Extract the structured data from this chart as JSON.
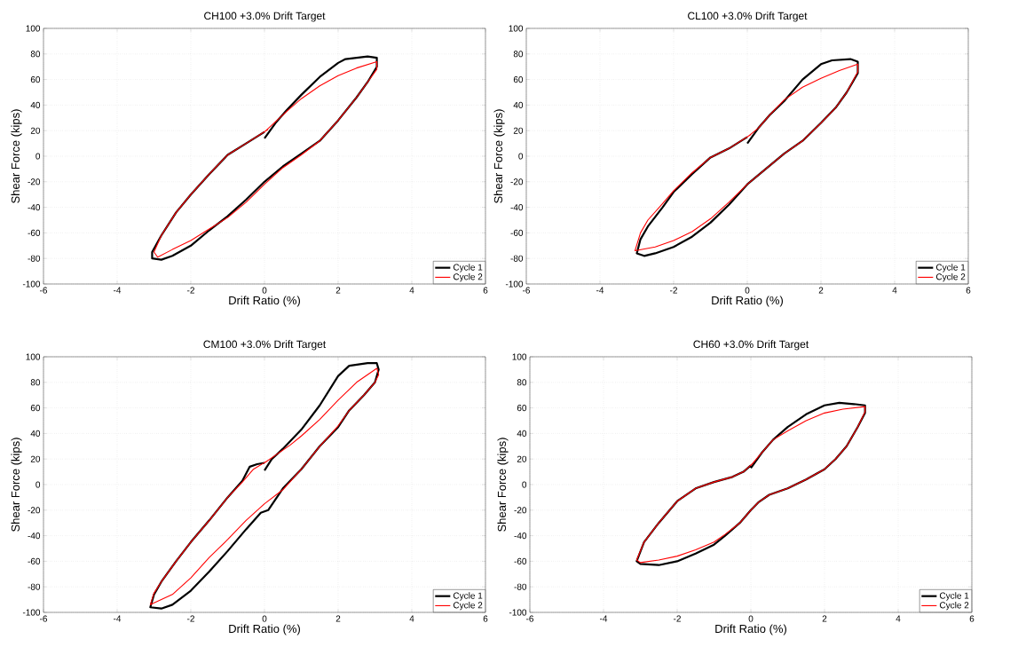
{
  "chart_data": [
    {
      "type": "line",
      "title": "CH100 +3.0% Drift Target",
      "xlabel": "Drift Ratio (%)",
      "ylabel": "Shear Force (kips)",
      "xlim": [
        -6,
        6
      ],
      "ylim": [
        -100,
        100
      ],
      "xticks": [
        -6,
        -4,
        -2,
        0,
        2,
        4,
        6
      ],
      "yticks": [
        -100,
        -80,
        -60,
        -40,
        -20,
        0,
        20,
        40,
        60,
        80,
        100
      ],
      "grid": true,
      "legend": "bottom right",
      "series": [
        {
          "name": "Cycle 1",
          "color": "#000000",
          "x": [
            0,
            0.3,
            0.6,
            1,
            1.5,
            2,
            2.2,
            2.5,
            2.8,
            3.05,
            3.05,
            2.8,
            2.5,
            2,
            1.5,
            1,
            0.5,
            0,
            -0.5,
            -1,
            -1.5,
            -2,
            -2.5,
            -2.8,
            -3.05,
            -3.05,
            -2.8,
            -2.4,
            -2,
            -1.5,
            -1,
            -0.5,
            0
          ],
          "values": [
            14,
            26,
            36,
            48,
            62,
            73,
            76,
            77,
            78,
            77,
            70,
            58,
            46,
            28,
            12,
            2,
            -8,
            -20,
            -34,
            -47,
            -58,
            -70,
            -78,
            -81,
            -80,
            -75,
            -62,
            -44,
            -30,
            -14,
            1,
            10,
            19
          ]
        },
        {
          "name": "Cycle 2",
          "color": "#ff0000",
          "x": [
            0,
            0.3,
            0.6,
            1,
            1.5,
            2,
            2.5,
            3.05,
            3.05,
            2.8,
            2.5,
            2,
            1.5,
            1,
            0.5,
            0,
            -0.5,
            -1,
            -1.5,
            -2,
            -2.5,
            -2.9,
            -3.0,
            -2.8,
            -2.4,
            -2,
            -1.5,
            -1,
            -0.5,
            0.1
          ],
          "values": [
            19,
            27,
            35,
            45,
            55,
            63,
            69,
            74,
            68,
            58,
            46,
            28,
            12,
            1,
            -9,
            -22,
            -36,
            -48,
            -57,
            -66,
            -73,
            -79,
            -75,
            -62,
            -44,
            -30,
            -14,
            1,
            10,
            21
          ]
        }
      ]
    },
    {
      "type": "line",
      "title": "CL100 +3.0% Drift Target",
      "xlabel": "Drift Ratio (%)",
      "ylabel": "Shear Force (kips)",
      "xlim": [
        -6,
        6
      ],
      "ylim": [
        -100,
        100
      ],
      "xticks": [
        -6,
        -4,
        -2,
        0,
        2,
        4,
        6
      ],
      "yticks": [
        -100,
        -80,
        -60,
        -40,
        -20,
        0,
        20,
        40,
        60,
        80,
        100
      ],
      "grid": true,
      "legend": "bottom right",
      "series": [
        {
          "name": "Cycle 1",
          "color": "#000000",
          "x": [
            0,
            0.3,
            0.6,
            1,
            1.5,
            2,
            2.3,
            2.8,
            3.0,
            3.0,
            2.7,
            2.4,
            2,
            1.5,
            1,
            0.5,
            0,
            -0.5,
            -1,
            -1.5,
            -2,
            -2.5,
            -2.8,
            -3.0,
            -2.9,
            -2.7,
            -2.3,
            -2,
            -1.5,
            -1,
            -0.5,
            0
          ],
          "values": [
            10,
            22,
            32,
            43,
            60,
            72,
            75,
            76,
            74,
            65,
            50,
            38,
            26,
            12,
            2,
            -10,
            -22,
            -38,
            -52,
            -63,
            -71,
            -76,
            -78,
            -76,
            -65,
            -55,
            -40,
            -28,
            -14,
            -1,
            6,
            15
          ]
        },
        {
          "name": "Cycle 2",
          "color": "#ff0000",
          "x": [
            0,
            0.3,
            0.6,
            1,
            1.5,
            2,
            2.5,
            3.0,
            3.0,
            2.7,
            2.4,
            2,
            1.5,
            1,
            0.5,
            0,
            -0.5,
            -1,
            -1.5,
            -2,
            -2.5,
            -3.05,
            -2.9,
            -2.7,
            -2.3,
            -2,
            -1.5,
            -1,
            -0.5,
            0.1
          ],
          "values": [
            15,
            22,
            32,
            44,
            54,
            61,
            67,
            72,
            66,
            50,
            38,
            26,
            12,
            2,
            -10,
            -22,
            -36,
            -49,
            -59,
            -66,
            -71,
            -74,
            -60,
            -50,
            -37,
            -27,
            -13,
            -1,
            6,
            17
          ]
        }
      ]
    },
    {
      "type": "line",
      "title": "CM100 +3.0% Drift Target",
      "xlabel": "Drift Ratio (%)",
      "ylabel": "Shear Force (kips)",
      "xlim": [
        -6,
        6
      ],
      "ylim": [
        -100,
        100
      ],
      "xticks": [
        -6,
        -4,
        -2,
        0,
        2,
        4,
        6
      ],
      "yticks": [
        -100,
        -80,
        -60,
        -40,
        -20,
        0,
        20,
        40,
        60,
        80,
        100
      ],
      "grid": true,
      "legend": "bottom right",
      "series": [
        {
          "name": "Cycle 1",
          "color": "#000000",
          "x": [
            0,
            0.2,
            0.5,
            1,
            1.5,
            2,
            2.3,
            2.8,
            3.05,
            3.1,
            3.0,
            2.7,
            2.3,
            2,
            1.5,
            1,
            0.5,
            0.1,
            -0.1,
            -0.5,
            -1,
            -1.5,
            -2,
            -2.5,
            -2.8,
            -3.1,
            -3.0,
            -2.8,
            -2.4,
            -2,
            -1.5,
            -1,
            -0.6,
            -0.4,
            -0.2,
            0
          ],
          "values": [
            11,
            20,
            28,
            43,
            62,
            85,
            93,
            95,
            95,
            90,
            80,
            70,
            58,
            45,
            30,
            12,
            -3,
            -20,
            -22,
            -35,
            -52,
            -68,
            -83,
            -94,
            -97,
            -96,
            -86,
            -76,
            -60,
            -45,
            -28,
            -10,
            3,
            14,
            16,
            17
          ]
        },
        {
          "name": "Cycle 2",
          "color": "#ff0000",
          "x": [
            0,
            0.3,
            0.7,
            1,
            1.5,
            2,
            2.5,
            3.05,
            3.1,
            3.0,
            2.7,
            2.3,
            2,
            1.5,
            1,
            0.5,
            0,
            -0.5,
            -1,
            -1.5,
            -2,
            -2.5,
            -3.1,
            -3.0,
            -2.8,
            -2.4,
            -2,
            -1.5,
            -1,
            -0.6,
            -0.3,
            0.1
          ],
          "values": [
            17,
            23,
            31,
            38,
            51,
            66,
            80,
            91,
            86,
            80,
            70,
            58,
            46,
            30,
            12,
            -4,
            -15,
            -28,
            -43,
            -57,
            -73,
            -86,
            -94,
            -85,
            -76,
            -60,
            -45,
            -28,
            -10,
            2,
            12,
            19
          ]
        }
      ]
    },
    {
      "type": "line",
      "title": "CH60 +3.0% Drift Target",
      "xlabel": "Drift Ratio (%)",
      "ylabel": "Shear Force (kips)",
      "xlim": [
        -6,
        6
      ],
      "ylim": [
        -100,
        100
      ],
      "xticks": [
        -6,
        -4,
        -2,
        0,
        2,
        4,
        6
      ],
      "yticks": [
        -100,
        -80,
        -60,
        -40,
        -20,
        0,
        20,
        40,
        60,
        80,
        100
      ],
      "grid": true,
      "legend": "bottom right",
      "series": [
        {
          "name": "Cycle 1",
          "color": "#000000",
          "x": [
            0,
            0.3,
            0.6,
            1,
            1.5,
            2,
            2.4,
            2.8,
            3.1,
            3.1,
            2.9,
            2.6,
            2.3,
            2,
            1.5,
            1,
            0.5,
            0.2,
            0,
            -0.3,
            -0.7,
            -1,
            -1.5,
            -2,
            -2.5,
            -3.0,
            -3.1,
            -2.9,
            -2.5,
            -2,
            -1.5,
            -1,
            -0.5,
            -0.2,
            0
          ],
          "values": [
            13,
            25,
            35,
            45,
            55,
            62,
            64,
            63,
            62,
            56,
            45,
            30,
            20,
            12,
            4,
            -3,
            -8,
            -14,
            -20,
            -30,
            -40,
            -47,
            -54,
            -60,
            -63,
            -62,
            -60,
            -45,
            -30,
            -13,
            -3,
            2,
            6,
            10,
            15
          ]
        },
        {
          "name": "Cycle 2",
          "color": "#ff0000",
          "x": [
            0,
            0.3,
            0.6,
            1,
            1.5,
            2,
            2.5,
            3.1,
            3.1,
            2.9,
            2.6,
            2.3,
            2,
            1.5,
            1,
            0.5,
            0.2,
            0,
            -0.3,
            -0.7,
            -1,
            -1.5,
            -2,
            -2.5,
            -3.0,
            -3.1,
            -2.9,
            -2.5,
            -2,
            -1.5,
            -1,
            -0.5,
            -0.2,
            0.1
          ],
          "values": [
            15,
            25,
            35,
            42,
            50,
            56,
            59,
            61,
            57,
            45,
            30,
            20,
            12,
            4,
            -3,
            -8,
            -14,
            -20,
            -30,
            -39,
            -45,
            -51,
            -56,
            -59,
            -61,
            -59,
            -45,
            -30,
            -13,
            -3,
            2,
            6,
            10,
            18
          ]
        }
      ]
    }
  ]
}
